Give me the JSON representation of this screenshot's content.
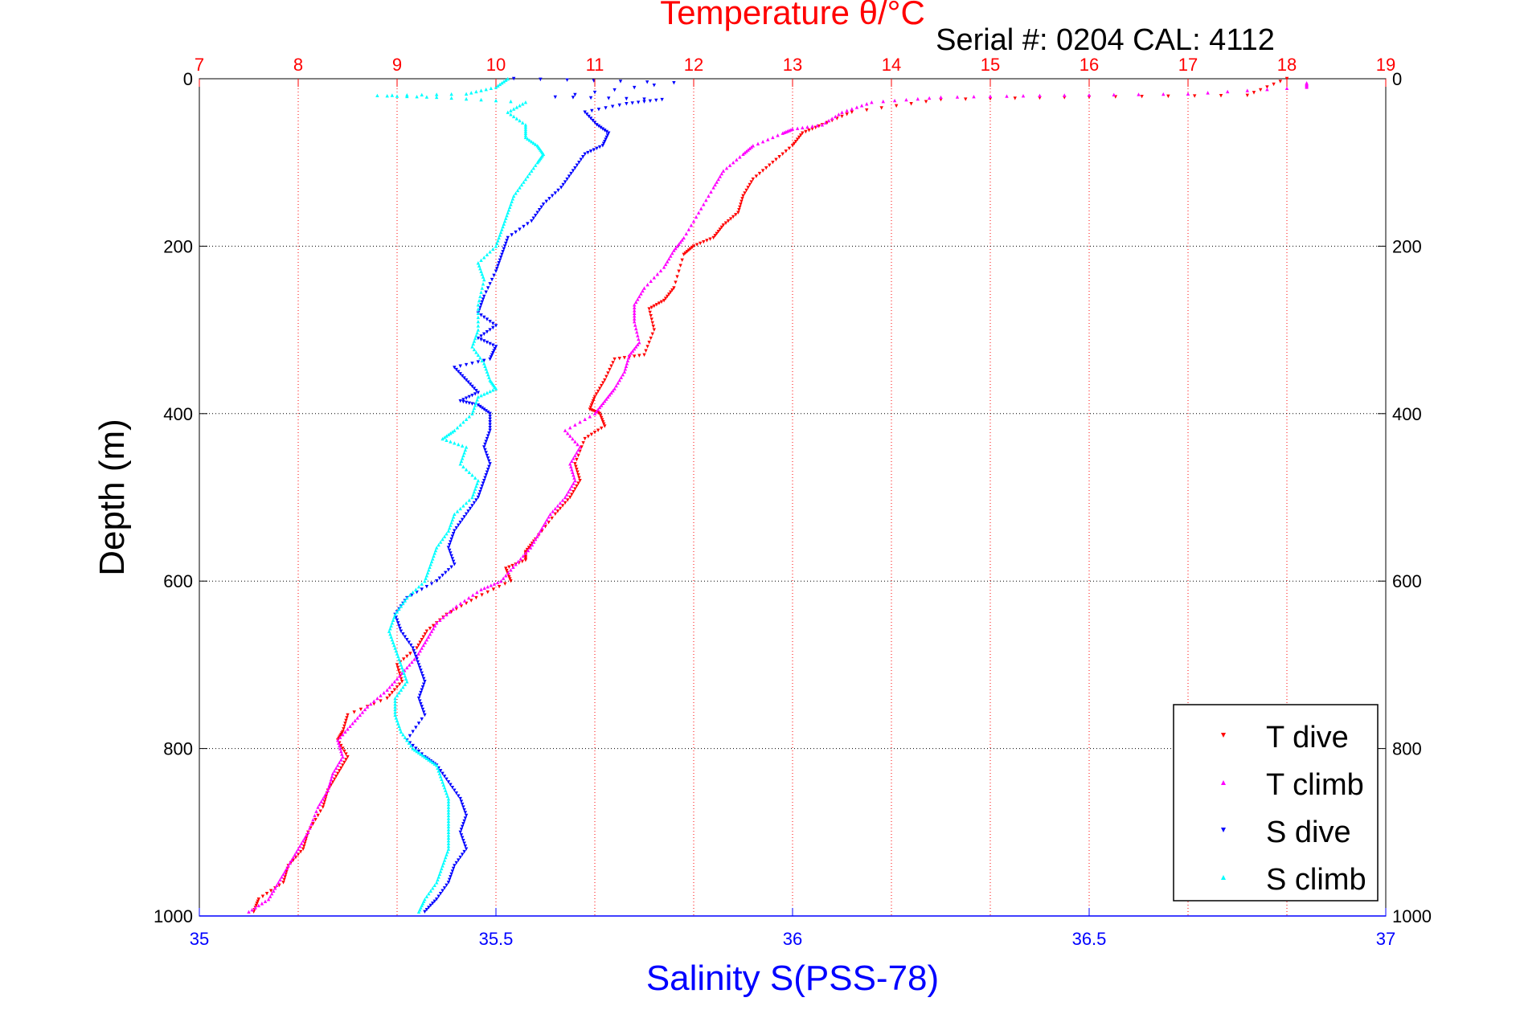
{
  "chart_data": {
    "type": "scatter",
    "title": "Temperature θ/°C",
    "subtitle": "Serial #: 0204  CAL: 4112",
    "ylabel": "Depth (m)",
    "xlabel_bottom": "Salinity S(PSS-78)",
    "xlabel_top": "Temperature θ/°C",
    "y_reversed": true,
    "ylim": [
      0,
      1000
    ],
    "yticks": [
      0,
      200,
      400,
      600,
      800,
      1000
    ],
    "x_bottom_lim": [
      35,
      37
    ],
    "x_bottom_ticks": [
      35,
      35.5,
      36,
      36.5,
      37
    ],
    "x_top_lim": [
      7,
      19
    ],
    "x_top_ticks": [
      7,
      8,
      9,
      10,
      11,
      12,
      13,
      14,
      15,
      16,
      17,
      18,
      19
    ],
    "grid": true,
    "legend_position": "bottom-right",
    "colors": {
      "temperature_axis": "#ff0000",
      "salinity_axis": "#0000ff",
      "depth_grid": "#000000"
    },
    "series": [
      {
        "name": "T dive",
        "axis": "temperature",
        "color": "#ff0000",
        "marker": "triangle-down",
        "points": [
          [
            18.0,
            0
          ],
          [
            17.6,
            20
          ],
          [
            16.0,
            22
          ],
          [
            14.5,
            25
          ],
          [
            13.6,
            40
          ],
          [
            13.3,
            55
          ],
          [
            13.1,
            65
          ],
          [
            13.0,
            80
          ],
          [
            12.8,
            100
          ],
          [
            12.6,
            120
          ],
          [
            12.5,
            140
          ],
          [
            12.45,
            160
          ],
          [
            12.3,
            175
          ],
          [
            12.2,
            190
          ],
          [
            12.0,
            200
          ],
          [
            11.9,
            210
          ],
          [
            11.8,
            250
          ],
          [
            11.7,
            265
          ],
          [
            11.55,
            275
          ],
          [
            11.6,
            300
          ],
          [
            11.5,
            330
          ],
          [
            11.2,
            335
          ],
          [
            11.1,
            360
          ],
          [
            11.0,
            380
          ],
          [
            10.95,
            395
          ],
          [
            11.05,
            400
          ],
          [
            11.1,
            415
          ],
          [
            10.9,
            430
          ],
          [
            10.8,
            460
          ],
          [
            10.85,
            480
          ],
          [
            10.75,
            500
          ],
          [
            10.6,
            520
          ],
          [
            10.4,
            550
          ],
          [
            10.3,
            565
          ],
          [
            10.3,
            575
          ],
          [
            10.1,
            585
          ],
          [
            10.15,
            600
          ],
          [
            9.8,
            620
          ],
          [
            9.5,
            640
          ],
          [
            9.3,
            660
          ],
          [
            9.2,
            680
          ],
          [
            9.0,
            700
          ],
          [
            9.05,
            720
          ],
          [
            8.9,
            740
          ],
          [
            8.5,
            760
          ],
          [
            8.45,
            780
          ],
          [
            8.4,
            790
          ],
          [
            8.5,
            810
          ],
          [
            8.4,
            830
          ],
          [
            8.3,
            850
          ],
          [
            8.25,
            870
          ],
          [
            8.1,
            900
          ],
          [
            8.05,
            920
          ],
          [
            7.9,
            940
          ],
          [
            7.85,
            960
          ],
          [
            7.6,
            980
          ],
          [
            7.55,
            995
          ]
        ]
      },
      {
        "name": "T climb",
        "axis": "temperature",
        "color": "#ff00ff",
        "marker": "triangle-up",
        "points": [
          [
            18.2,
            5
          ],
          [
            18.2,
            10
          ],
          [
            17.0,
            18
          ],
          [
            15.5,
            20
          ],
          [
            14.5,
            22
          ],
          [
            13.8,
            28
          ],
          [
            13.5,
            40
          ],
          [
            13.3,
            55
          ],
          [
            13.0,
            60
          ],
          [
            12.9,
            65
          ],
          [
            12.6,
            80
          ],
          [
            12.5,
            90
          ],
          [
            12.3,
            110
          ],
          [
            12.2,
            130
          ],
          [
            12.05,
            160
          ],
          [
            11.9,
            190
          ],
          [
            11.8,
            205
          ],
          [
            11.7,
            225
          ],
          [
            11.5,
            250
          ],
          [
            11.4,
            270
          ],
          [
            11.4,
            290
          ],
          [
            11.45,
            315
          ],
          [
            11.35,
            330
          ],
          [
            11.3,
            350
          ],
          [
            11.2,
            370
          ],
          [
            11.1,
            385
          ],
          [
            11.0,
            400
          ],
          [
            10.7,
            420
          ],
          [
            10.85,
            440
          ],
          [
            10.75,
            460
          ],
          [
            10.8,
            480
          ],
          [
            10.7,
            500
          ],
          [
            10.55,
            520
          ],
          [
            10.45,
            540
          ],
          [
            10.35,
            560
          ],
          [
            10.2,
            580
          ],
          [
            10.05,
            600
          ],
          [
            9.85,
            610
          ],
          [
            9.6,
            630
          ],
          [
            9.4,
            650
          ],
          [
            9.3,
            670
          ],
          [
            9.2,
            690
          ],
          [
            9.05,
            710
          ],
          [
            8.9,
            730
          ],
          [
            8.7,
            750
          ],
          [
            8.55,
            770
          ],
          [
            8.4,
            790
          ],
          [
            8.45,
            810
          ],
          [
            8.35,
            830
          ],
          [
            8.3,
            850
          ],
          [
            8.2,
            870
          ],
          [
            8.1,
            900
          ],
          [
            8.0,
            920
          ],
          [
            7.9,
            940
          ],
          [
            7.8,
            960
          ],
          [
            7.7,
            980
          ],
          [
            7.5,
            995
          ]
        ]
      },
      {
        "name": "S dive",
        "axis": "salinity",
        "color": "#0000ff",
        "marker": "triangle-down",
        "points": [
          [
            35.53,
            0
          ],
          [
            35.8,
            5
          ],
          [
            35.6,
            22
          ],
          [
            35.78,
            25
          ],
          [
            35.72,
            30
          ],
          [
            35.65,
            40
          ],
          [
            35.67,
            55
          ],
          [
            35.69,
            65
          ],
          [
            35.68,
            80
          ],
          [
            35.65,
            90
          ],
          [
            35.63,
            110
          ],
          [
            35.61,
            130
          ],
          [
            35.58,
            150
          ],
          [
            35.56,
            170
          ],
          [
            35.52,
            190
          ],
          [
            35.51,
            210
          ],
          [
            35.5,
            230
          ],
          [
            35.48,
            260
          ],
          [
            35.47,
            280
          ],
          [
            35.5,
            295
          ],
          [
            35.47,
            310
          ],
          [
            35.5,
            320
          ],
          [
            35.49,
            335
          ],
          [
            35.43,
            345
          ],
          [
            35.45,
            360
          ],
          [
            35.47,
            375
          ],
          [
            35.44,
            385
          ],
          [
            35.47,
            390
          ],
          [
            35.49,
            400
          ],
          [
            35.49,
            420
          ],
          [
            35.48,
            440
          ],
          [
            35.49,
            460
          ],
          [
            35.48,
            480
          ],
          [
            35.47,
            500
          ],
          [
            35.45,
            520
          ],
          [
            35.43,
            540
          ],
          [
            35.42,
            560
          ],
          [
            35.43,
            580
          ],
          [
            35.4,
            600
          ],
          [
            35.35,
            620
          ],
          [
            35.33,
            640
          ],
          [
            35.34,
            660
          ],
          [
            35.36,
            680
          ],
          [
            35.37,
            700
          ],
          [
            35.38,
            720
          ],
          [
            35.37,
            740
          ],
          [
            35.38,
            760
          ],
          [
            35.35,
            790
          ],
          [
            35.38,
            810
          ],
          [
            35.4,
            820
          ],
          [
            35.42,
            840
          ],
          [
            35.44,
            860
          ],
          [
            35.45,
            880
          ],
          [
            35.44,
            900
          ],
          [
            35.45,
            920
          ],
          [
            35.43,
            940
          ],
          [
            35.42,
            960
          ],
          [
            35.4,
            980
          ],
          [
            35.38,
            995
          ]
        ]
      },
      {
        "name": "S climb",
        "axis": "salinity",
        "color": "#00ffff",
        "marker": "triangle-up",
        "points": [
          [
            35.52,
            0
          ],
          [
            35.5,
            10
          ],
          [
            35.45,
            18
          ],
          [
            35.3,
            20
          ],
          [
            35.4,
            22
          ],
          [
            35.55,
            28
          ],
          [
            35.52,
            40
          ],
          [
            35.55,
            55
          ],
          [
            35.55,
            70
          ],
          [
            35.57,
            80
          ],
          [
            35.58,
            90
          ],
          [
            35.57,
            100
          ],
          [
            35.55,
            120
          ],
          [
            35.53,
            140
          ],
          [
            35.52,
            160
          ],
          [
            35.51,
            180
          ],
          [
            35.5,
            200
          ],
          [
            35.47,
            220
          ],
          [
            35.48,
            240
          ],
          [
            35.47,
            270
          ],
          [
            35.47,
            300
          ],
          [
            35.46,
            320
          ],
          [
            35.48,
            340
          ],
          [
            35.49,
            360
          ],
          [
            35.5,
            370
          ],
          [
            35.47,
            380
          ],
          [
            35.46,
            400
          ],
          [
            35.43,
            420
          ],
          [
            35.41,
            430
          ],
          [
            35.45,
            440
          ],
          [
            35.44,
            460
          ],
          [
            35.47,
            480
          ],
          [
            35.46,
            500
          ],
          [
            35.43,
            520
          ],
          [
            35.42,
            540
          ],
          [
            35.4,
            560
          ],
          [
            35.39,
            580
          ],
          [
            35.38,
            600
          ],
          [
            35.35,
            620
          ],
          [
            35.33,
            640
          ],
          [
            35.32,
            660
          ],
          [
            35.33,
            680
          ],
          [
            35.34,
            700
          ],
          [
            35.35,
            720
          ],
          [
            35.33,
            740
          ],
          [
            35.33,
            760
          ],
          [
            35.34,
            780
          ],
          [
            35.36,
            800
          ],
          [
            35.38,
            810
          ],
          [
            35.4,
            820
          ],
          [
            35.41,
            840
          ],
          [
            35.42,
            860
          ],
          [
            35.42,
            880
          ],
          [
            35.42,
            900
          ],
          [
            35.42,
            920
          ],
          [
            35.41,
            940
          ],
          [
            35.4,
            960
          ],
          [
            35.38,
            980
          ],
          [
            35.37,
            995
          ]
        ]
      }
    ]
  }
}
